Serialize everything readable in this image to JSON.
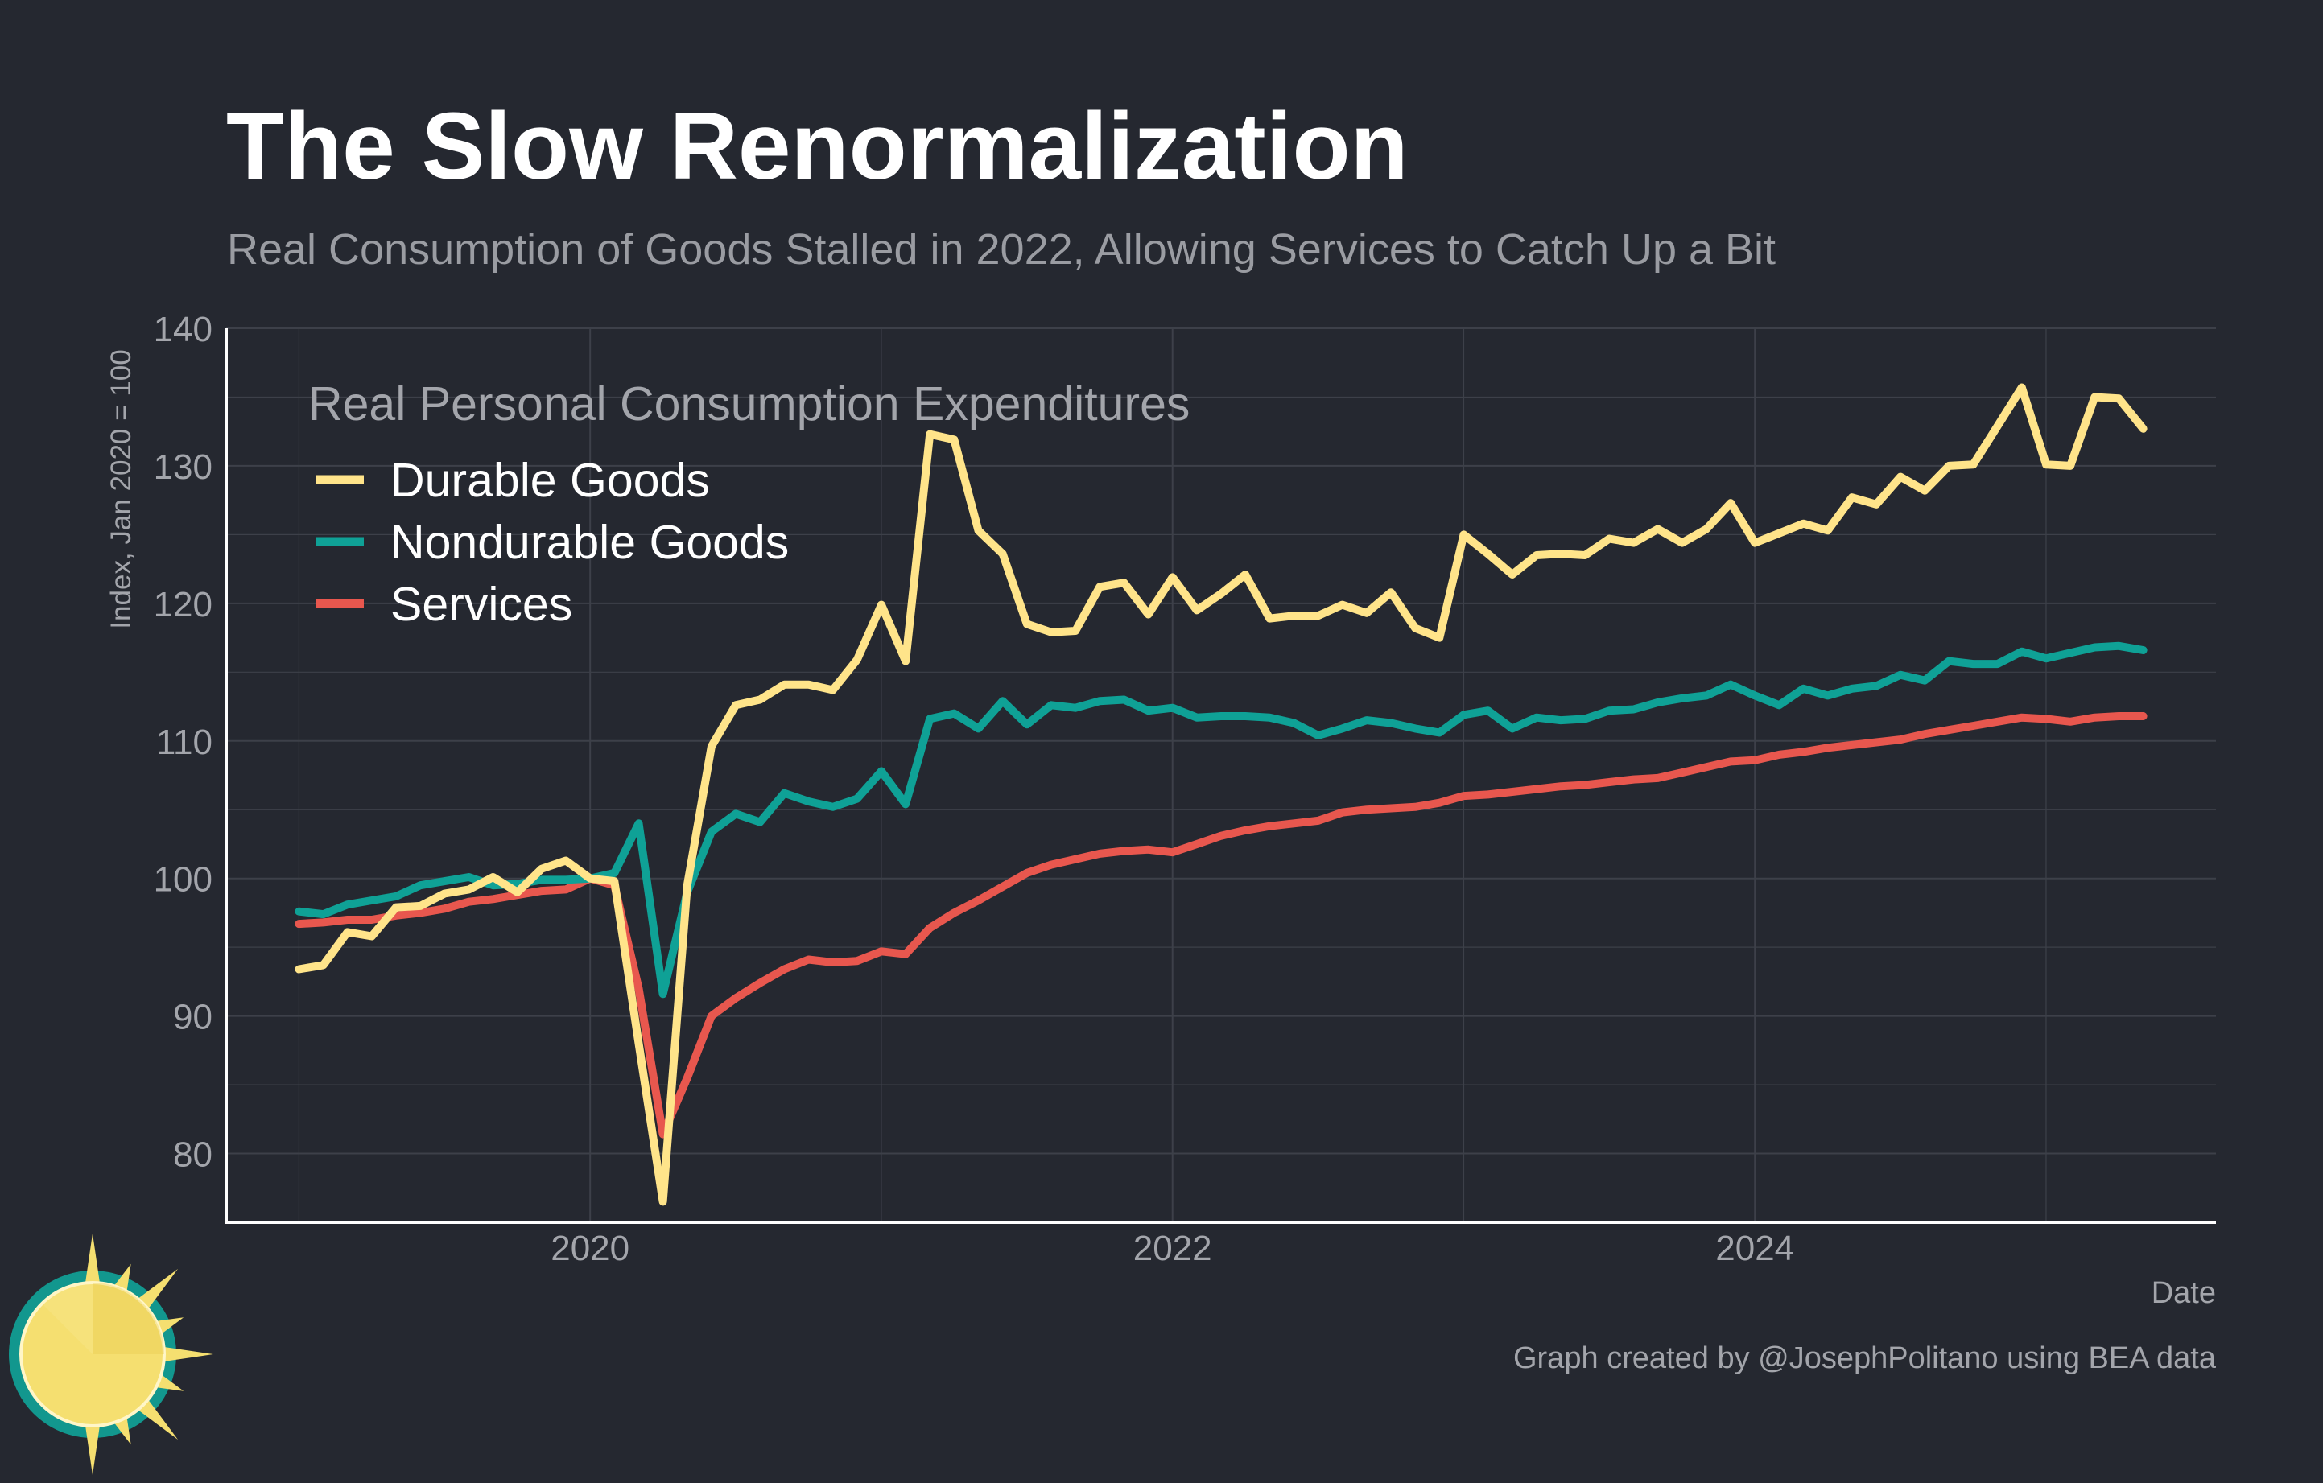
{
  "title": "The Slow Renormalization",
  "subtitle": "Real Consumption of Goods Stalled in 2022, Allowing Services to Catch Up a Bit",
  "caption": "Graph created by @JosephPolitano using BEA data",
  "colors": {
    "background": "#252830",
    "grid": "#3d4049",
    "axis": "#ffffff",
    "durable": "#ffe48a",
    "nondurable": "#0fa196",
    "services": "#e8574e",
    "logo_sun": "#f5df70",
    "logo_ring": "#12978e"
  },
  "chart_data": {
    "type": "line",
    "xlabel": "Date",
    "ylabel": "Index, Jan 2020 = 100",
    "ylim": [
      75,
      140
    ],
    "y_ticks": [
      80,
      90,
      100,
      110,
      120,
      130,
      140
    ],
    "x_range": [
      "2018-10",
      "2025-08"
    ],
    "x_ticks": [
      "2020",
      "2022",
      "2024"
    ],
    "x_tick_dates": [
      "2020-01",
      "2022-01",
      "2024-01"
    ],
    "grid": true,
    "legend": {
      "title": "Real Personal Consumption Expenditures",
      "position": "top-left"
    },
    "x_start": "2019-01",
    "x_frequency": "monthly",
    "series": [
      {
        "name": "Durable Goods",
        "color": "#ffe48a",
        "values": [
          93.4,
          93.7,
          96.1,
          95.8,
          97.9,
          98.0,
          98.9,
          99.2,
          100.1,
          99.0,
          100.7,
          101.3,
          100.0,
          99.8,
          88.0,
          76.5,
          99.5,
          109.6,
          112.6,
          113.0,
          114.1,
          114.1,
          113.7,
          115.9,
          119.9,
          115.8,
          132.3,
          131.9,
          125.3,
          123.6,
          118.5,
          117.9,
          118.0,
          121.2,
          121.5,
          119.2,
          121.9,
          119.5,
          120.7,
          122.1,
          118.9,
          119.1,
          119.1,
          119.9,
          119.3,
          120.8,
          118.2,
          117.5,
          125.0,
          123.6,
          122.1,
          123.5,
          123.6,
          123.5,
          124.7,
          124.4,
          125.4,
          124.4,
          125.4,
          127.3,
          124.4,
          125.1,
          125.8,
          125.3,
          127.7,
          127.2,
          129.2,
          128.2,
          130.0,
          130.1,
          132.9,
          135.7,
          130.1,
          130.0,
          135.0,
          134.9,
          132.7
        ]
      },
      {
        "name": "Nondurable Goods",
        "color": "#0fa196",
        "values": [
          97.6,
          97.4,
          98.1,
          98.4,
          98.7,
          99.5,
          99.8,
          100.1,
          99.5,
          99.6,
          99.9,
          99.9,
          100.0,
          100.4,
          104.0,
          91.6,
          99.0,
          103.4,
          104.7,
          104.1,
          106.2,
          105.6,
          105.2,
          105.8,
          107.8,
          105.4,
          111.6,
          112.0,
          110.9,
          112.9,
          111.2,
          112.6,
          112.4,
          112.9,
          113.0,
          112.2,
          112.4,
          111.7,
          111.8,
          111.8,
          111.7,
          111.3,
          110.4,
          110.9,
          111.5,
          111.3,
          110.9,
          110.6,
          111.9,
          112.2,
          110.9,
          111.7,
          111.5,
          111.6,
          112.2,
          112.3,
          112.8,
          113.1,
          113.3,
          114.1,
          113.3,
          112.6,
          113.8,
          113.3,
          113.8,
          114.0,
          114.8,
          114.4,
          115.8,
          115.6,
          115.6,
          116.5,
          116.0,
          116.4,
          116.8,
          116.9,
          116.6
        ]
      },
      {
        "name": "Services",
        "color": "#e8574e",
        "values": [
          96.7,
          96.8,
          97.0,
          97.0,
          97.3,
          97.5,
          97.8,
          98.3,
          98.5,
          98.8,
          99.1,
          99.2,
          100.0,
          99.5,
          92.0,
          81.4,
          85.5,
          90.0,
          91.3,
          92.4,
          93.4,
          94.1,
          93.9,
          94.0,
          94.7,
          94.5,
          96.4,
          97.5,
          98.4,
          99.4,
          100.4,
          101.0,
          101.4,
          101.8,
          102.0,
          102.1,
          101.9,
          102.5,
          103.1,
          103.5,
          103.8,
          104.0,
          104.2,
          104.8,
          105.0,
          105.1,
          105.2,
          105.5,
          106.0,
          106.1,
          106.3,
          106.5,
          106.7,
          106.8,
          107.0,
          107.2,
          107.3,
          107.7,
          108.1,
          108.5,
          108.6,
          109.0,
          109.2,
          109.5,
          109.7,
          109.9,
          110.1,
          110.5,
          110.8,
          111.1,
          111.4,
          111.7,
          111.6,
          111.4,
          111.7,
          111.8,
          111.8
        ]
      }
    ]
  }
}
